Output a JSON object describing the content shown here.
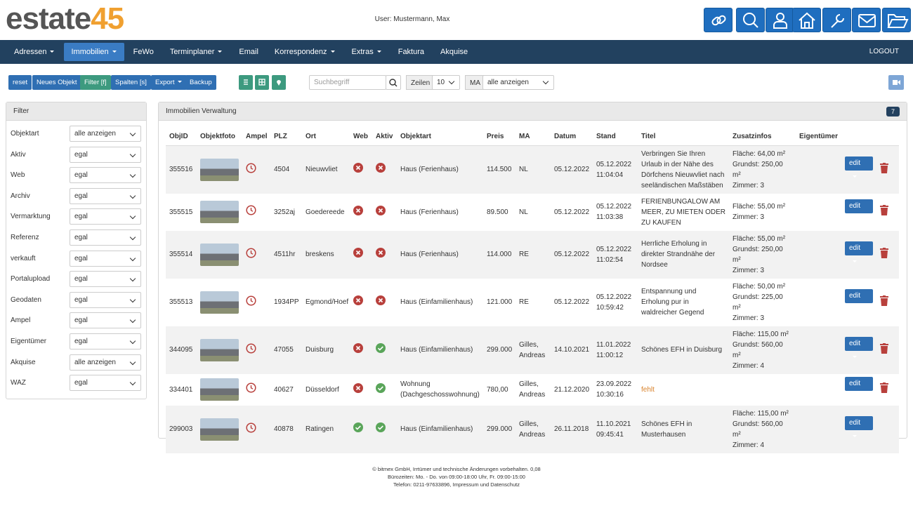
{
  "header": {
    "logo_main": "estate",
    "logo_number": "45",
    "user": "User: Mustermann, Max"
  },
  "nav": {
    "items": [
      {
        "label": "Adressen",
        "dropdown": true
      },
      {
        "label": "Immobilien",
        "dropdown": true,
        "active": true
      },
      {
        "label": "FeWo",
        "dropdown": false
      },
      {
        "label": "Terminplaner",
        "dropdown": true
      },
      {
        "label": "Email",
        "dropdown": false
      },
      {
        "label": "Korrespondenz",
        "dropdown": true
      },
      {
        "label": "Extras",
        "dropdown": true
      },
      {
        "label": "Faktura",
        "dropdown": false
      },
      {
        "label": "Akquise",
        "dropdown": false
      }
    ],
    "logout": "LOGOUT"
  },
  "toolbar": {
    "buttons": [
      {
        "label": "reset",
        "color": "#2f6fb3"
      },
      {
        "label": "Neues Objekt",
        "color": "#2f6fb3"
      },
      {
        "label": "Filter [f]",
        "color": "#3d9a7f"
      },
      {
        "label": "Spalten [s]",
        "color": "#2f6fb3"
      },
      {
        "label": "Export",
        "color": "#2f6fb3",
        "dropdown": true
      },
      {
        "label": "Backup",
        "color": "#2f6fb3"
      }
    ],
    "search_placeholder": "Suchbegriff",
    "rows_label": "Zeilen",
    "rows_value": "10",
    "ma_label": "MA",
    "ma_value": "alle anzeigen"
  },
  "filter": {
    "title": "Filter",
    "rows": [
      [
        "Objektart",
        "alle anzeigen"
      ],
      [
        "Aktiv",
        "egal"
      ],
      [
        "Web",
        "egal"
      ],
      [
        "Archiv",
        "egal"
      ],
      [
        "Vermarktung",
        "egal"
      ],
      [
        "Referenz",
        "egal"
      ],
      [
        "verkauft",
        "egal"
      ],
      [
        "Portalupload",
        "egal"
      ],
      [
        "Geodaten",
        "egal"
      ],
      [
        "Ampel",
        "egal"
      ],
      [
        "Eigentümer",
        "egal"
      ],
      [
        "Akquise",
        "alle anzeigen"
      ],
      [
        "WAZ",
        "egal"
      ]
    ]
  },
  "table": {
    "title": "Immobilien Verwaltung",
    "count": "7",
    "edit_label": "edit",
    "headers": [
      "ObjID",
      "Objektfoto",
      "Ampel",
      "PLZ",
      "Ort",
      "Web",
      "Aktiv",
      "Objektart",
      "Preis",
      "MA",
      "Datum",
      "Stand",
      "Titel",
      "Zusatzinfos",
      "Eigentümer"
    ],
    "rows": [
      {
        "objid": "355516",
        "plz": "4504",
        "ort": "Nieuwvliet",
        "web": false,
        "aktiv": false,
        "objektart": "Haus (Ferienhaus)",
        "preis": "114.500",
        "ma": "NL",
        "datum": "05.12.2022",
        "stand": "05.12.2022 11:04:04",
        "titel": "Verbringen Sie Ihren Urlaub in der Nähe des Dörfchens Nieuwvliet nach seeländischen Maßstäben",
        "zusatzinfos": [
          "Fläche: 64,00 m²",
          "Grundst: 250,00 m²",
          "Zimmer: 3"
        ],
        "deletable": true
      },
      {
        "objid": "355515",
        "plz": "3252aj",
        "ort": "Goedereede",
        "web": false,
        "aktiv": false,
        "objektart": "Haus (Ferienhaus)",
        "preis": "89.500",
        "ma": "NL",
        "datum": "05.12.2022",
        "stand": "05.12.2022 11:03:38",
        "titel": "FERIENBUNGALOW AM MEER, ZU MIETEN ODER ZU KAUFEN",
        "zusatzinfos": [
          "Fläche: 55,00 m²",
          "Zimmer: 3"
        ],
        "deletable": true
      },
      {
        "objid": "355514",
        "plz": "4511hr",
        "ort": "breskens",
        "web": false,
        "aktiv": false,
        "objektart": "Haus (Ferienhaus)",
        "preis": "114.000",
        "ma": "RE",
        "datum": "05.12.2022",
        "stand": "05.12.2022 11:02:54",
        "titel": "Herrliche Erholung in direkter Strandnähe der Nordsee",
        "zusatzinfos": [
          "Fläche: 55,00 m²",
          "Grundst: 250,00 m²",
          "Zimmer: 3"
        ],
        "deletable": true
      },
      {
        "objid": "355513",
        "plz": "1934PP",
        "ort": "Egmond/Hoef",
        "web": false,
        "aktiv": false,
        "objektart": "Haus (Einfamilienhaus)",
        "preis": "121.000",
        "ma": "RE",
        "datum": "05.12.2022",
        "stand": "05.12.2022 10:59:42",
        "titel": "Entspannung und Erholung pur in waldreicher Gegend",
        "zusatzinfos": [
          "Fläche: 50,00 m²",
          "Grundst: 225,00 m²",
          "Zimmer: 3"
        ],
        "deletable": true
      },
      {
        "objid": "344095",
        "plz": "47055",
        "ort": "Duisburg",
        "web": false,
        "aktiv": true,
        "objektart": "Haus (Einfamilienhaus)",
        "preis": "299.000",
        "ma": "Gilles, Andreas",
        "datum": "14.10.2021",
        "stand": "11.01.2022 11:00:12",
        "titel": "Schönes EFH in Duisburg",
        "zusatzinfos": [
          "Fläche: 115,00 m²",
          "Grundst: 560,00 m²",
          "Zimmer: 4"
        ],
        "deletable": true
      },
      {
        "objid": "334401",
        "plz": "40627",
        "ort": "Düsseldorf",
        "web": false,
        "aktiv": true,
        "objektart": "Wohnung (Dachgeschosswohnung)",
        "preis": "780,00",
        "ma": "Gilles, Andreas",
        "datum": "21.12.2020",
        "stand": "23.09.2022 10:30:16",
        "titel": "fehlt",
        "titel_missing": true,
        "zusatzinfos": [],
        "deletable": true
      },
      {
        "objid": "299003",
        "plz": "40878",
        "ort": "Ratingen",
        "web": true,
        "aktiv": true,
        "objektart": "Haus (Einfamilienhaus)",
        "preis": "299.000",
        "ma": "Gilles, Andreas",
        "datum": "26.11.2018",
        "stand": "11.10.2021 09:45:41",
        "titel": "Schönes EFH in Musterhausen",
        "zusatzinfos": [
          "Fläche: 115,00 m²",
          "Grundst: 560,00 m²",
          "Zimmer: 4"
        ],
        "deletable": false
      }
    ]
  },
  "footer": {
    "lines": [
      "© bitmex GmbH, Irrtümer und technische Änderungen vorbehalten. 0,08",
      "Bürozeiten: Mo. - Do. von 09:00-18:00 Uhr, Fr. 09:00-15:00",
      "Telefon: 0211-97633896, Impressum und Datenschutz"
    ]
  }
}
